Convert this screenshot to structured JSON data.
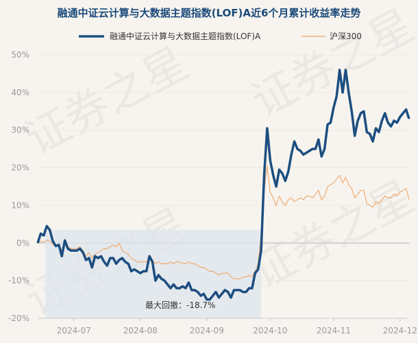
{
  "chart_data": {
    "type": "line",
    "title": "融通中证云计算与大数据主题指数(LOF)A近6个月累计收益率走势",
    "xlabel": "",
    "ylabel": "",
    "x_ticks": [
      "2024-07",
      "2024-08",
      "2024-09",
      "2024-10",
      "2024-11",
      "2024-12"
    ],
    "y_ticks": [
      "-20%",
      "-10%",
      "0%",
      "10%",
      "20%",
      "30%",
      "40%",
      "50%"
    ],
    "ylim": [
      -20,
      50
    ],
    "legend_position": "top",
    "x_unit": "trading-day index (0 = 2024-06-14 start, ~ -3.5 = tick 2024-07 at day 12)",
    "series": [
      {
        "name": "融通中证云计算与大数据主题指数(LOF)A",
        "color": "#1c4e80",
        "values": [
          0,
          2.5,
          2,
          4.5,
          3.5,
          0.5,
          -0.8,
          -0.5,
          -3.5,
          0.7,
          -1.5,
          -2,
          -2,
          -2,
          -1.5,
          -2.5,
          -4.5,
          -4,
          -6.5,
          -3.5,
          -4,
          -3.5,
          -5,
          -6,
          -4,
          -4,
          -5.5,
          -4.5,
          -4,
          -5,
          -5.5,
          -7.5,
          -7,
          -7.5,
          -8,
          -7.5,
          -7.5,
          -3.5,
          -5,
          -10,
          -8.5,
          -9.5,
          -10,
          -11,
          -12,
          -11,
          -12,
          -12,
          -11.5,
          -12,
          -10.5,
          -12.5,
          -12.5,
          -13,
          -14,
          -13.5,
          -15,
          -15,
          -14,
          -13,
          -14.5,
          -13.5,
          -12.5,
          -13,
          -14.5,
          -12.5,
          -12.5,
          -12.5,
          -13,
          -13,
          -12,
          -12,
          -8,
          -7,
          -2,
          18,
          30.5,
          22,
          18,
          15,
          19.5,
          18.5,
          16.5,
          19,
          23.5,
          27,
          25,
          24.5,
          23.5,
          24,
          24.5,
          25,
          25,
          27.5,
          23,
          25,
          31.5,
          32,
          36,
          39,
          46,
          40,
          46,
          40,
          35,
          28.5,
          32.5,
          34.5,
          35,
          29.5,
          29,
          27,
          30.5,
          29.5,
          32.5,
          34.5,
          32,
          31,
          32.5,
          32,
          33.5,
          34.5,
          35.5,
          33
        ]
      },
      {
        "name": "沪深300",
        "color": "#f0b07a",
        "values": [
          0,
          0.5,
          0.2,
          0.8,
          0.5,
          -0.5,
          -0.5,
          -0.3,
          -2,
          0,
          -1,
          -1.5,
          -1.5,
          -1.5,
          -1,
          -2,
          -3.5,
          -2.5,
          -4,
          -3,
          -2.5,
          -2,
          -1.5,
          -1.5,
          -1,
          -0.5,
          -1,
          0,
          -2,
          -2.5,
          -3,
          -4,
          -4.5,
          -5,
          -5,
          -5,
          -5,
          -4,
          -4.5,
          -5.5,
          -5,
          -5.5,
          -5.5,
          -5.5,
          -5,
          -5.5,
          -5,
          -5,
          -5.5,
          -5.5,
          -5,
          -5.5,
          -5.5,
          -6,
          -6.5,
          -6.5,
          -7,
          -7.5,
          -7.5,
          -8,
          -8.5,
          -8,
          -8,
          -8,
          -9,
          -9.5,
          -9.5,
          -9.5,
          -9,
          -9,
          -8.5,
          -9,
          -7.5,
          -5.5,
          2,
          14,
          20.5,
          13.5,
          12,
          10,
          12.5,
          11,
          10,
          11.5,
          12,
          11,
          11.5,
          12,
          11.5,
          12.5,
          12.5,
          12,
          13,
          14,
          11.5,
          12.5,
          15,
          15.5,
          16,
          17,
          18,
          16,
          17.5,
          15.5,
          14.5,
          12,
          13,
          14,
          14,
          10.5,
          10,
          9.5,
          11,
          10.5,
          11.5,
          12.5,
          12,
          12,
          13,
          12.5,
          13.5,
          14,
          14.5,
          11.5
        ]
      }
    ],
    "max_drawdown_label": "最大回撤：-18.7%"
  },
  "watermark": "证券之星"
}
